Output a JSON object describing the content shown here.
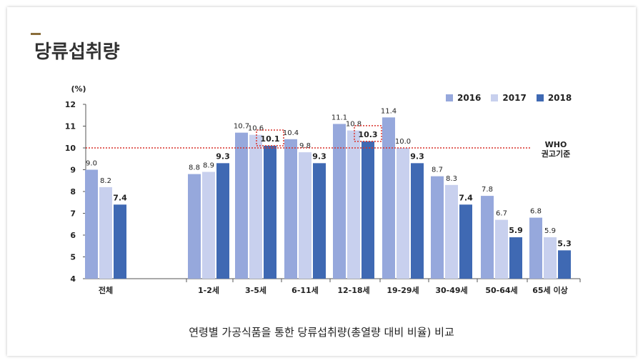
{
  "page": {
    "title": "당류섭취량",
    "caption": "연령별 가공식품을 통한 당류섭취량(총열량 대비 비율) 비교"
  },
  "chart_data": {
    "type": "bar",
    "ylabel": "(%)",
    "ylim": [
      4,
      12
    ],
    "yticks": [
      4,
      5,
      6,
      7,
      8,
      9,
      10,
      11,
      12
    ],
    "categories": [
      "전체",
      "1-2세",
      "3-5세",
      "6-11세",
      "12-18세",
      "19-29세",
      "30-49세",
      "50-64세",
      "65세 이상"
    ],
    "series": [
      {
        "name": "2016",
        "color": "#96a8dc",
        "values": [
          9.0,
          8.8,
          10.7,
          10.4,
          11.1,
          11.4,
          8.7,
          7.8,
          6.8
        ]
      },
      {
        "name": "2017",
        "color": "#c8d0ee",
        "values": [
          8.2,
          8.9,
          10.6,
          9.8,
          10.8,
          10.0,
          8.3,
          6.7,
          5.9
        ]
      },
      {
        "name": "2018",
        "color": "#3f69b3",
        "values": [
          7.4,
          9.3,
          10.1,
          9.3,
          10.3,
          9.3,
          7.4,
          5.9,
          5.3
        ]
      }
    ],
    "reference_line": {
      "value": 10,
      "label_line1": "WHO",
      "label_line2": "권고기준",
      "color": "#d9302a"
    },
    "highlighted": [
      {
        "category_index": 2,
        "series_index": 2
      },
      {
        "category_index": 4,
        "series_index": 2
      }
    ],
    "legend": "top-right",
    "grid": false
  }
}
